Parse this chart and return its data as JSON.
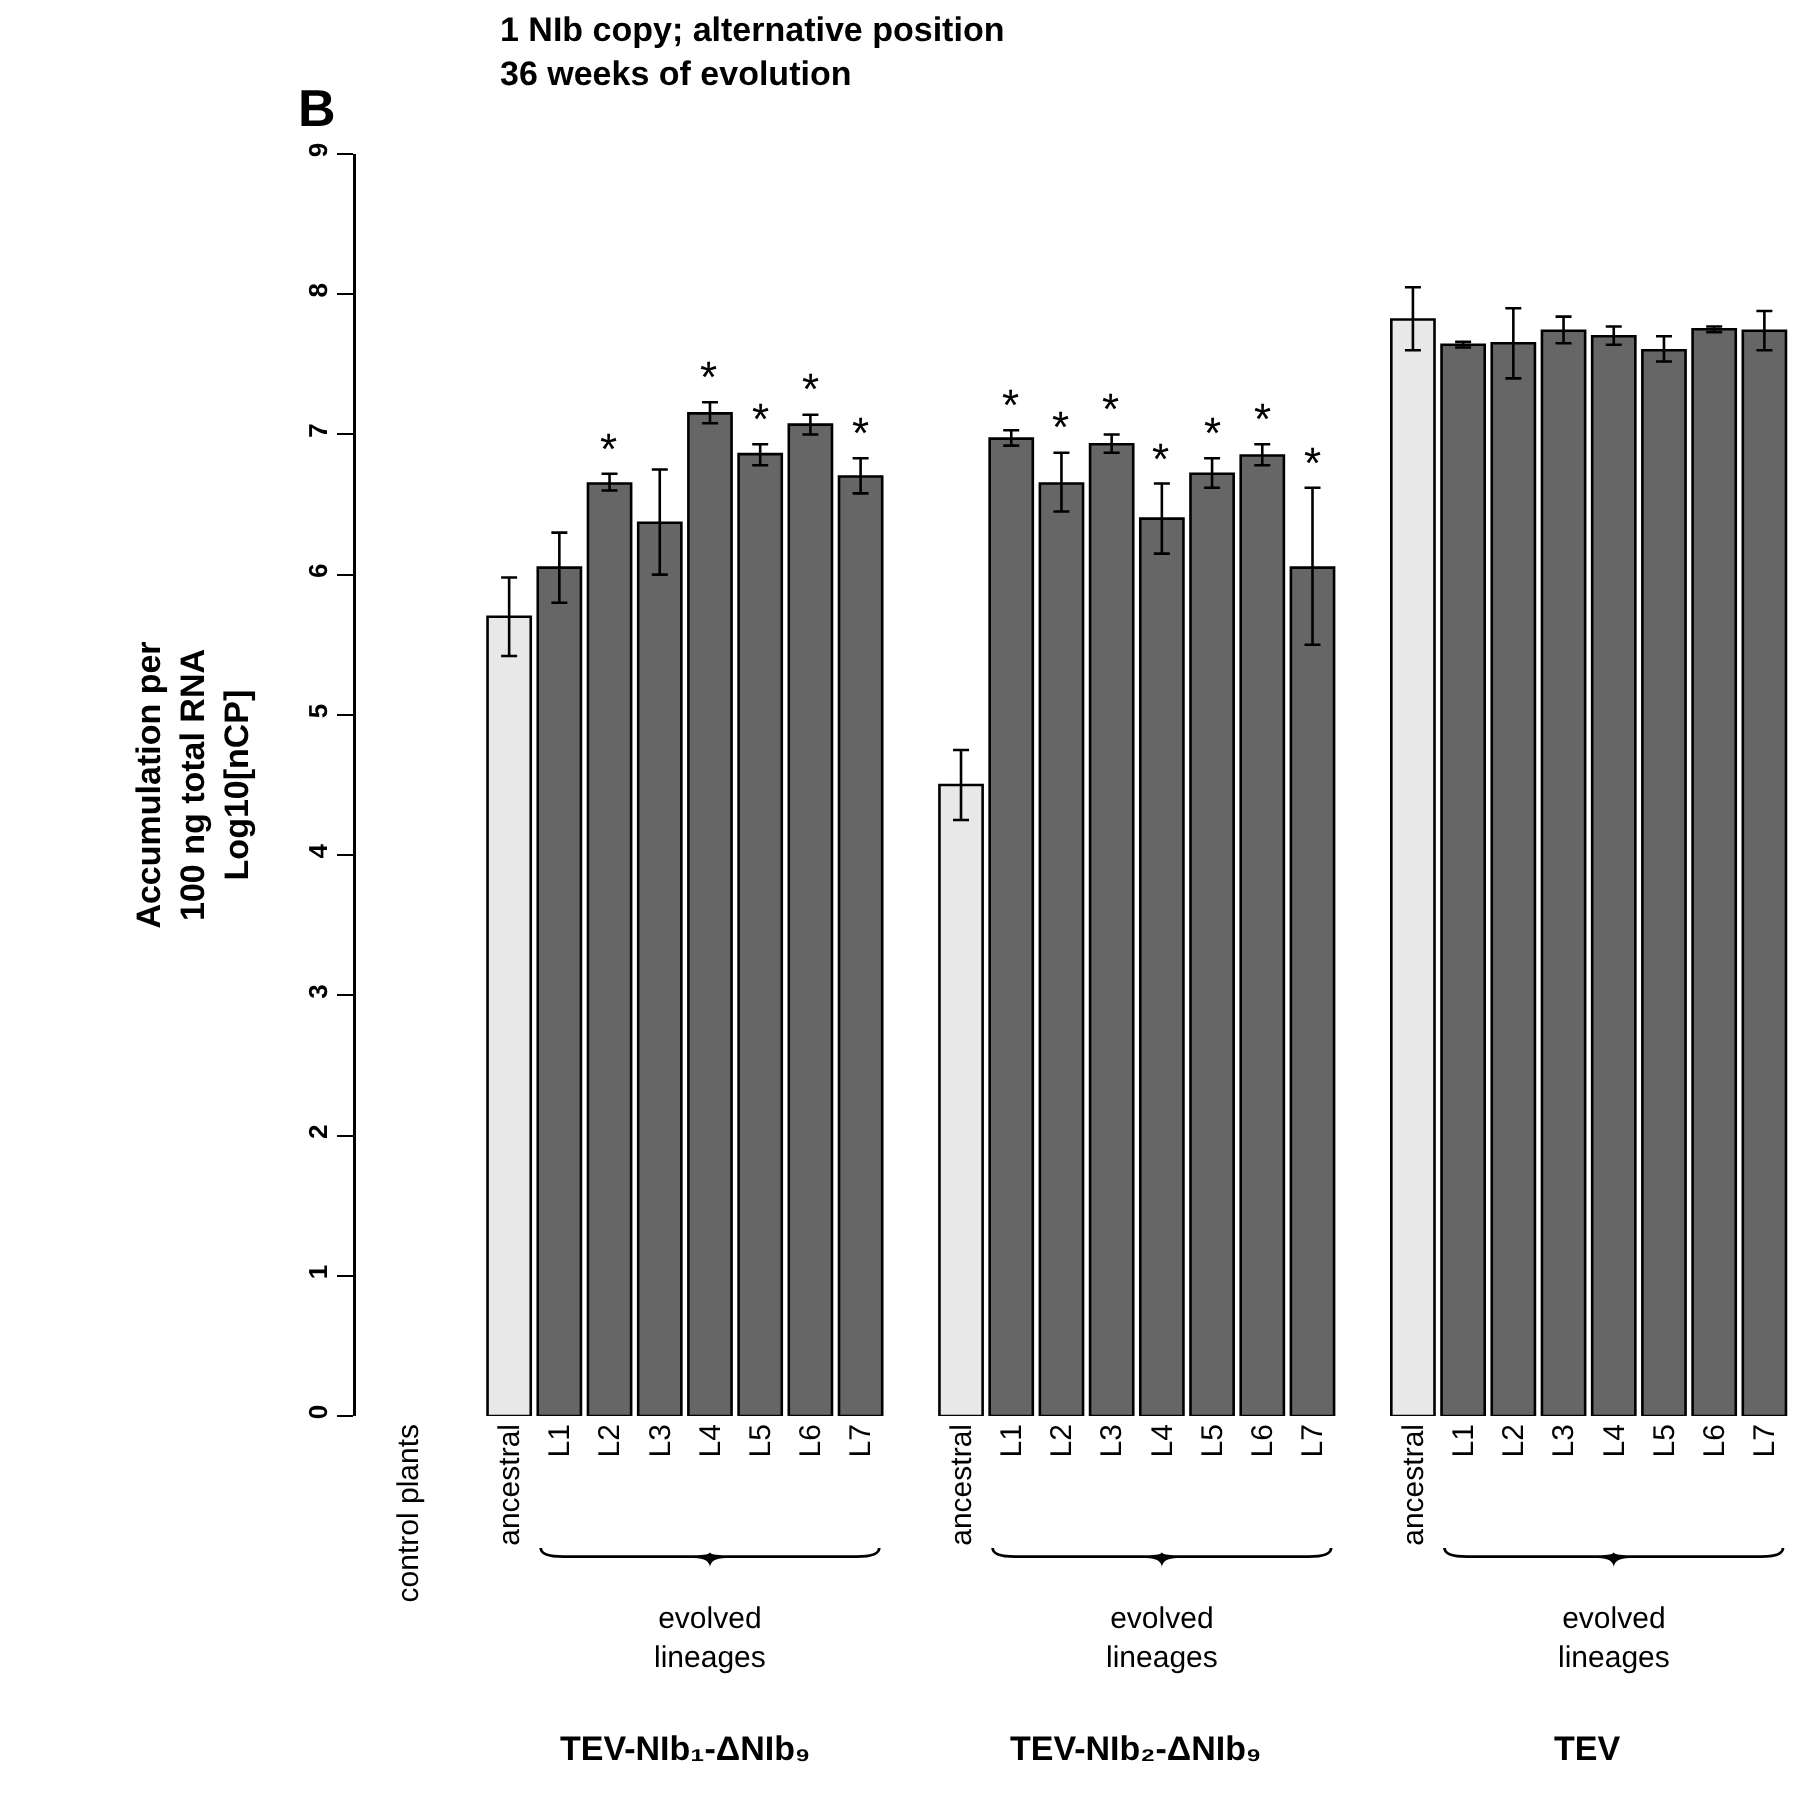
{
  "chart_data": {
    "type": "bar",
    "title": "1 NIb copy; alternative position",
    "subtitle": "36 weeks of evolution",
    "ylabel": "Accumulation per\n100 ng total RNA\nLog10[nCP]",
    "categories": [
      "control plants",
      null,
      "ancestral",
      "L1",
      "L2",
      "L3",
      "L4",
      "L5",
      "L6",
      "L7",
      null,
      "ancestral",
      "L1",
      "L2",
      "L3",
      "L4",
      "L5",
      "L6",
      "L7",
      null,
      "ancestral",
      "L1",
      "L2",
      "L3",
      "L4",
      "L5",
      "L6",
      "L7"
    ],
    "values": [
      null,
      null,
      5.7,
      6.05,
      6.65,
      6.37,
      7.15,
      6.86,
      7.07,
      6.7,
      null,
      4.5,
      6.97,
      6.65,
      6.93,
      6.4,
      6.72,
      6.85,
      6.05,
      null,
      7.82,
      7.64,
      7.65,
      7.74,
      7.7,
      7.6,
      7.75,
      7.74
    ],
    "colors": [
      null,
      null,
      "#e8e8e8",
      "#666666",
      "#666666",
      "#666666",
      "#666666",
      "#666666",
      "#666666",
      "#666666",
      null,
      "#e8e8e8",
      "#666666",
      "#666666",
      "#666666",
      "#666666",
      "#666666",
      "#666666",
      "#666666",
      null,
      "#e8e8e8",
      "#666666",
      "#666666",
      "#666666",
      "#666666",
      "#666666",
      "#666666",
      "#666666"
    ],
    "errors": [
      null,
      null,
      [
        5.42,
        5.98
      ],
      [
        5.8,
        6.3
      ],
      [
        6.6,
        6.72
      ],
      [
        6.0,
        6.75
      ],
      [
        7.08,
        7.23
      ],
      [
        6.78,
        6.93
      ],
      [
        7.0,
        7.14
      ],
      [
        6.58,
        6.83
      ],
      null,
      [
        4.25,
        4.75
      ],
      [
        6.92,
        7.03
      ],
      [
        6.45,
        6.87
      ],
      [
        6.87,
        7.0
      ],
      [
        6.15,
        6.65
      ],
      [
        6.62,
        6.83
      ],
      [
        6.78,
        6.93
      ],
      [
        5.5,
        6.62
      ],
      null,
      [
        7.6,
        8.05
      ],
      [
        7.62,
        7.66
      ],
      [
        7.4,
        7.9
      ],
      [
        7.65,
        7.84
      ],
      [
        7.64,
        7.77
      ],
      [
        7.52,
        7.7
      ],
      [
        7.73,
        7.77
      ],
      [
        7.6,
        7.88
      ]
    ],
    "value_labels": [
      null,
      null,
      null,
      null,
      "*",
      null,
      "*",
      "*",
      "*",
      "*",
      null,
      null,
      "*",
      "*",
      "*",
      "*",
      "*",
      "*",
      "*",
      null,
      null,
      null,
      null,
      null,
      null,
      null,
      null,
      null
    ],
    "ylim": [
      0,
      9
    ],
    "yticks": [
      0,
      1,
      2,
      3,
      4,
      5,
      6,
      7,
      8,
      9
    ],
    "annotations": [
      "B",
      "evolved\nlineages",
      "evolved\nlineages",
      "evolved\nlineages",
      "TEV-NIb₁-ΔNIb₉",
      "TEV-NIb₂-ΔNIb₉",
      "TEV"
    ]
  }
}
